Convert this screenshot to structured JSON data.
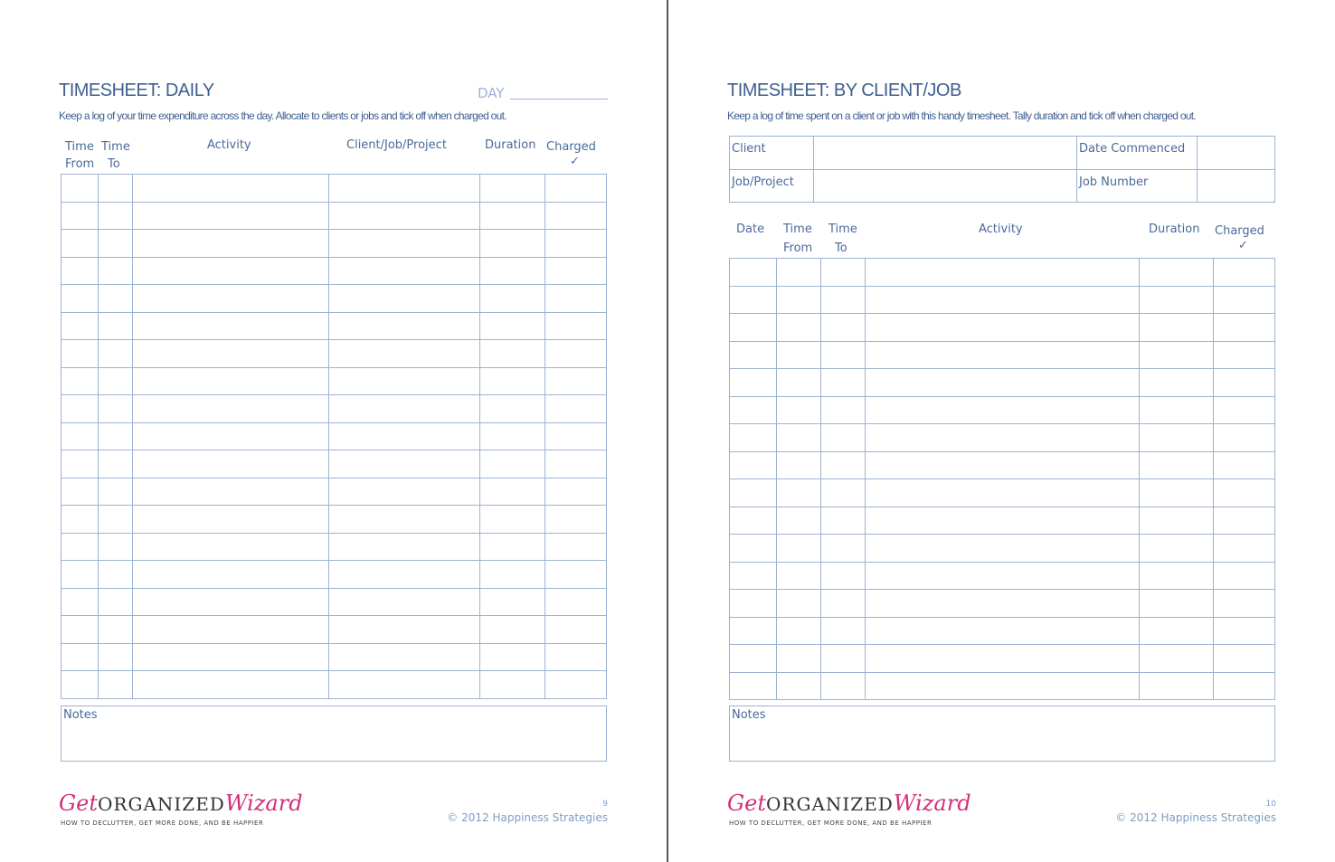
{
  "left": {
    "title": "TIMESHEET: DAILY",
    "day_label": "DAY",
    "subtitle": "Keep a log of your time expenditure across the day. Allocate to clients or jobs and tick off when charged out.",
    "headers": {
      "time_from": [
        "Time",
        "From"
      ],
      "time_to": [
        "Time",
        "To"
      ],
      "activity": "Activity",
      "client": "Client/Job/Project",
      "duration": "Duration",
      "charged": "Charged",
      "check": "✓"
    },
    "notes": "Notes",
    "page": "9",
    "copyright": "© 2012 Happiness Strategies"
  },
  "right": {
    "title": "TIMESHEET: BY CLIENT/JOB",
    "subtitle": "Keep a log of time spent on a client or job with this handy timesheet. Tally duration and tick off when charged out.",
    "info": {
      "client": "Client",
      "job": "Job/Project",
      "date_commenced": "Date Commenced",
      "job_number": "Job Number"
    },
    "headers": {
      "date": "Date",
      "time_from": [
        "Time",
        "From"
      ],
      "time_to": [
        "Time",
        "To"
      ],
      "activity": "Activity",
      "duration": "Duration",
      "charged": "Charged",
      "check": "✓"
    },
    "notes": "Notes",
    "page": "10",
    "copyright": "© 2012 Happiness Strategies"
  },
  "logo": {
    "get": "Get",
    "organized": "ORGANIZED",
    "wizard": "Wizard",
    "tagline": "HOW TO DECLUTTER, GET MORE DONE, AND BE HAPPIER"
  },
  "colors": {
    "title": "#3f5f8f",
    "grid": "#9db3d2",
    "logo": "#d0307a"
  }
}
